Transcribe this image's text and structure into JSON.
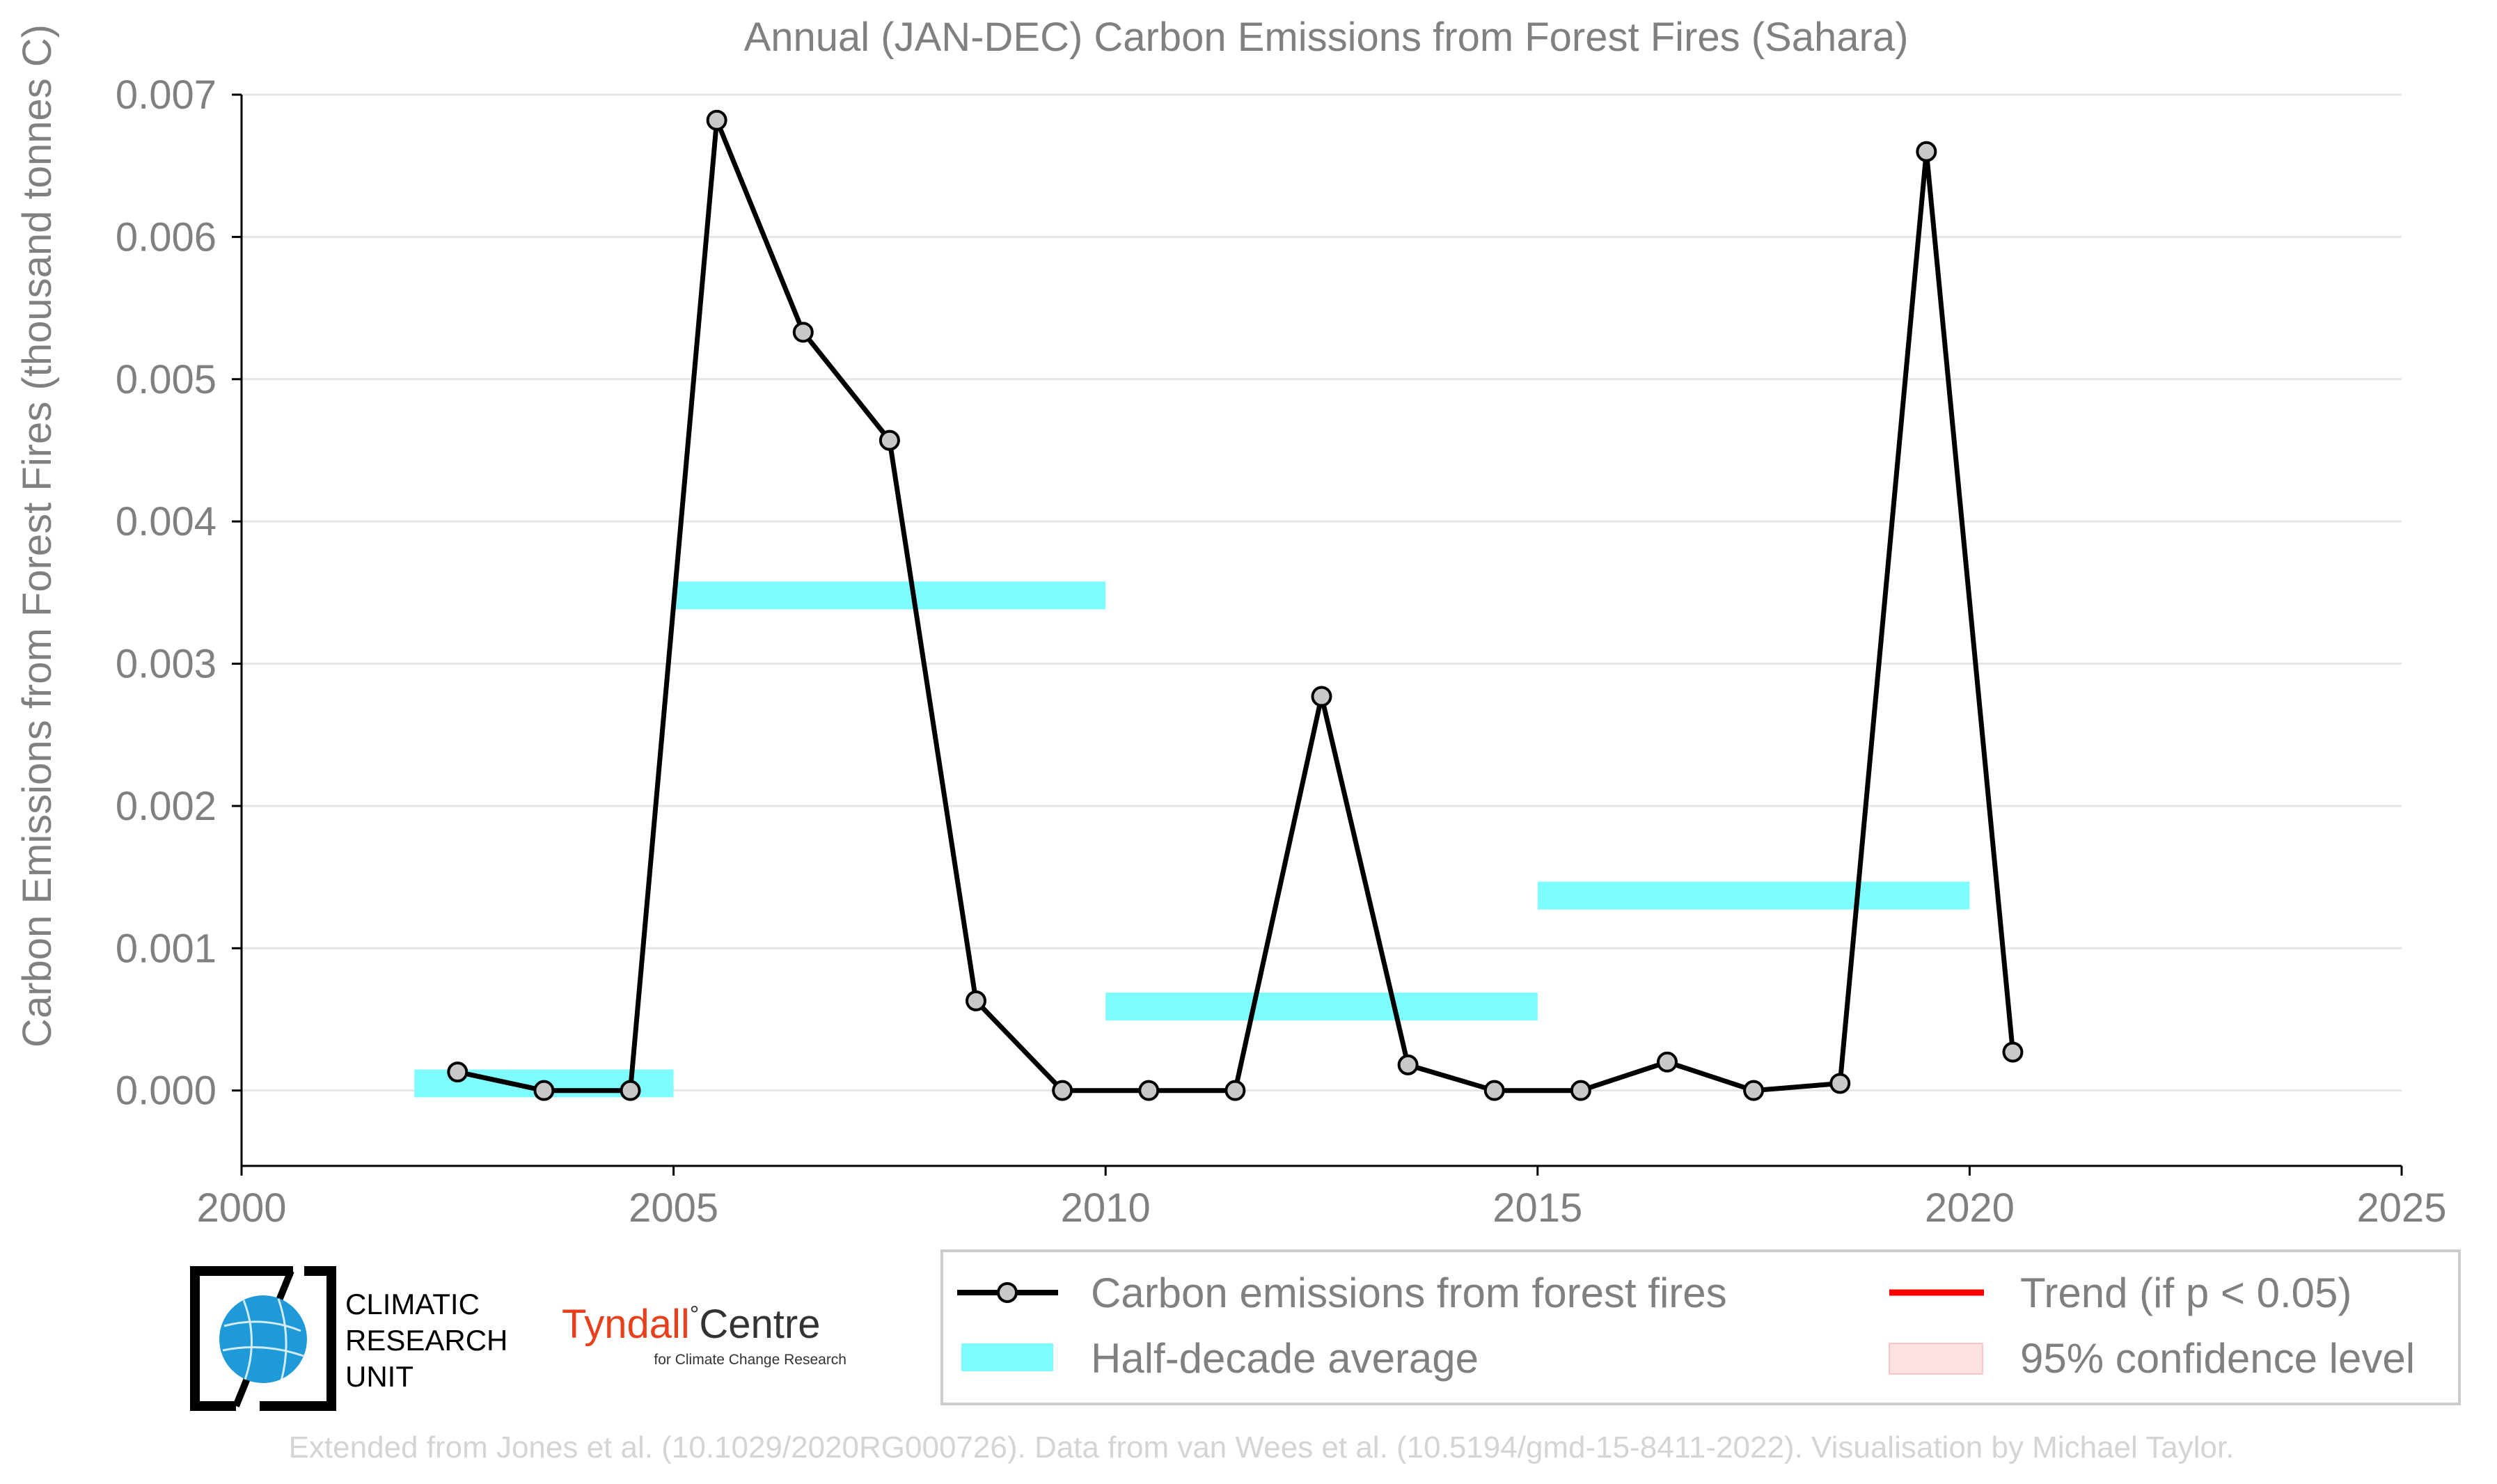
{
  "chart_data": {
    "type": "line",
    "title": "Annual (JAN-DEC) Carbon Emissions from Forest Fires (Sahara)",
    "xlabel": "",
    "ylabel": "Carbon Emissions from Forest Fires (thousand tonnes C)",
    "xlim": [
      2000,
      2025
    ],
    "ylim": [
      -0.00053,
      0.007
    ],
    "xticks": [
      "2000",
      "2005",
      "2010",
      "2015",
      "2020",
      "2025"
    ],
    "yticks": [
      "0.000",
      "0.001",
      "0.002",
      "0.003",
      "0.004",
      "0.005",
      "0.006",
      "0.007"
    ],
    "grid": "horizontal",
    "series": [
      {
        "name": "Carbon emissions from forest fires",
        "color": "#000000",
        "marker_fill": "#c8c8c8",
        "x": [
          2002.5,
          2003.5,
          2004.5,
          2005.5,
          2006.5,
          2007.5,
          2008.5,
          2009.5,
          2010.5,
          2011.5,
          2012.5,
          2013.5,
          2014.5,
          2015.5,
          2016.5,
          2017.5,
          2018.5,
          2019.5,
          2020.5
        ],
        "y": [
          0.00013,
          0.0,
          0.0,
          0.00682,
          0.00533,
          0.00457,
          0.00063,
          0.0,
          0.0,
          0.0,
          0.00277,
          0.00018,
          0.0,
          0.0,
          0.0002,
          0.0,
          5e-05,
          0.0066,
          0.00027
        ]
      }
    ],
    "half_decade_average": {
      "name": "Half-decade average",
      "color": "#7ffcff",
      "periods": [
        {
          "x": [
            2002,
            2005
          ],
          "y": 5e-05
        },
        {
          "x": [
            2005,
            2010
          ],
          "y": 0.00348
        },
        {
          "x": [
            2010,
            2015
          ],
          "y": 0.00059
        },
        {
          "x": [
            2015,
            2020
          ],
          "y": 0.00137
        }
      ]
    },
    "trend": {
      "name": "Trend (if p < 0.05)",
      "color": "#ff0000"
    },
    "confidence": {
      "name": "95% confidence level",
      "color": "#fde0e0"
    }
  },
  "legend": {
    "placement": "bottom-right",
    "items": [
      {
        "key": "series",
        "label": "Carbon emissions from forest fires"
      },
      {
        "key": "trend",
        "label": "Trend (if p < 0.05)"
      },
      {
        "key": "average",
        "label": "Half-decade average"
      },
      {
        "key": "confidence",
        "label": "95% confidence level"
      }
    ]
  },
  "logos": {
    "cru_lines": [
      "CLIMATIC",
      "RESEARCH",
      "UNIT"
    ],
    "tyndall_name": "Tyndall",
    "tyndall_degree": "°",
    "tyndall_centre": "Centre",
    "tyndall_sub": "for Climate Change Research",
    "tyndall_color": "#e8401c"
  },
  "credit": "Extended from Jones et al. (10.1029/2020RG000726). Data from van Wees et al. (10.5194/gmd-15-8411-2022). Visualisation by Michael Taylor."
}
